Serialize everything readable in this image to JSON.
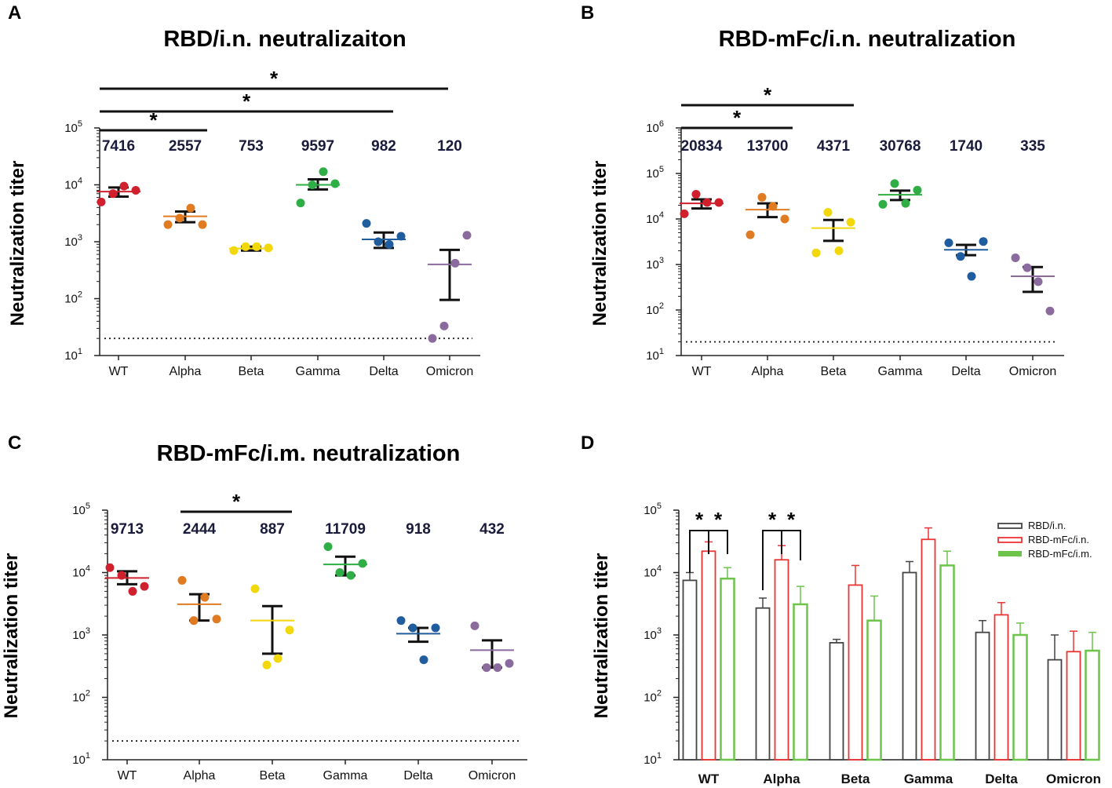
{
  "chart_data": [
    {
      "id": "A",
      "type": "scatter",
      "panel_letter": "A",
      "title": "RBD/i.n. neutralizaiton",
      "ylabel": "Neutralization titer",
      "yscale": "log",
      "ylim_exp": [
        1,
        5
      ],
      "detection_limit": 20,
      "categories": [
        "WT",
        "Alpha",
        "Beta",
        "Gamma",
        "Delta",
        "Omicron"
      ],
      "colors": [
        "#d0202d",
        "#e07b22",
        "#f2d70a",
        "#2fae45",
        "#1f5d9e",
        "#8b6a9e"
      ],
      "gmt_labels": [
        "7416",
        "2557",
        "753",
        "9597",
        "982",
        "120"
      ],
      "points": [
        [
          5000,
          7000,
          9500,
          8000
        ],
        [
          2000,
          2600,
          3900,
          2000
        ],
        [
          700,
          820,
          820,
          780
        ],
        [
          4800,
          10000,
          17000,
          10500
        ],
        [
          2100,
          1000,
          900,
          1250
        ],
        [
          20,
          33,
          420,
          1300
        ]
      ],
      "mean": [
        7600,
        2800,
        760,
        10000,
        1100,
        400
      ],
      "err_low": [
        6200,
        2200,
        700,
        8300,
        780,
        95
      ],
      "err_high": [
        9000,
        3400,
        820,
        12500,
        1450,
        720
      ],
      "significance": [
        {
          "from": 0,
          "to": 1,
          "label": "*"
        },
        {
          "from": 0,
          "to": 4,
          "label": "*"
        },
        {
          "from": 0,
          "to": 5,
          "label": "*"
        }
      ]
    },
    {
      "id": "B",
      "type": "scatter",
      "panel_letter": "B",
      "title": "RBD-mFc/i.n. neutralization",
      "ylabel": "Neutralization titer",
      "yscale": "log",
      "ylim_exp": [
        1,
        6
      ],
      "detection_limit": 20,
      "categories": [
        "WT",
        "Alpha",
        "Beta",
        "Gamma",
        "Delta",
        "Omicron"
      ],
      "colors": [
        "#d0202d",
        "#e07b22",
        "#f2d70a",
        "#2fae45",
        "#1f5d9e",
        "#8b6a9e"
      ],
      "gmt_labels": [
        "20834",
        "13700",
        "4371",
        "30768",
        "1740",
        "335"
      ],
      "points": [
        [
          13000,
          35000,
          23000,
          23000
        ],
        [
          4500,
          30000,
          19000,
          10000
        ],
        [
          1800,
          14000,
          2000,
          8500
        ],
        [
          21000,
          60000,
          22000,
          43000
        ],
        [
          3000,
          1500,
          550,
          3200
        ],
        [
          1400,
          850,
          420,
          95
        ]
      ],
      "mean": [
        22000,
        16000,
        6300,
        34000,
        2100,
        550
      ],
      "err_low": [
        17000,
        11000,
        3300,
        26000,
        1600,
        250
      ],
      "err_high": [
        27000,
        22000,
        9500,
        42000,
        2700,
        880
      ],
      "significance": [
        {
          "from": 0,
          "to": 1,
          "label": "*"
        },
        {
          "from": 0,
          "to": 2,
          "label": "*"
        }
      ]
    },
    {
      "id": "C",
      "type": "scatter",
      "panel_letter": "C",
      "title": "RBD-mFc/i.m. neutralization",
      "ylabel": "Neutralization titer",
      "yscale": "log",
      "ylim_exp": [
        1,
        5
      ],
      "detection_limit": 20,
      "categories": [
        "WT",
        "Alpha",
        "Beta",
        "Gamma",
        "Delta",
        "Omicron"
      ],
      "colors": [
        "#d0202d",
        "#e07b22",
        "#f2d70a",
        "#2fae45",
        "#1f5d9e",
        "#8b6a9e"
      ],
      "gmt_labels": [
        "9713",
        "2444",
        "887",
        "11709",
        "918",
        "432"
      ],
      "points": [
        [
          12000,
          9000,
          5000,
          6000
        ],
        [
          7500,
          1700,
          4000,
          1800
        ],
        [
          5500,
          330,
          420,
          1200
        ],
        [
          26000,
          10000,
          9000,
          14000
        ],
        [
          1700,
          1300,
          400,
          1300
        ],
        [
          1400,
          300,
          300,
          350
        ]
      ],
      "mean": [
        8200,
        3100,
        1700,
        13500,
        1050,
        570
      ],
      "err_low": [
        6500,
        1700,
        500,
        9000,
        780,
        300
      ],
      "err_high": [
        10500,
        4500,
        2900,
        18000,
        1300,
        820
      ],
      "significance": [
        {
          "from": 1,
          "to": 2,
          "label": "*"
        }
      ]
    },
    {
      "id": "D",
      "type": "bar",
      "panel_letter": "D",
      "ylabel": "Neutralization titer",
      "yscale": "log",
      "ylim_exp": [
        1,
        5
      ],
      "categories": [
        "WT",
        "Alpha",
        "Beta",
        "Gamma",
        "Delta",
        "Omicron"
      ],
      "series": [
        {
          "name": "RBD/i.n.",
          "color": "#444444",
          "values": [
            7500,
            2700,
            750,
            10000,
            1100,
            400
          ],
          "err": [
            10000,
            3900,
            850,
            15000,
            1700,
            1000
          ]
        },
        {
          "name": "RBD-mFc/i.n.",
          "color": "#ee3333",
          "values": [
            22000,
            16000,
            6300,
            34000,
            2100,
            540
          ],
          "err": [
            31000,
            27000,
            13000,
            52000,
            3300,
            1150
          ]
        },
        {
          "name": "RBD-mFc/i.m.",
          "color": "#6cc44a",
          "values": [
            8000,
            3100,
            1700,
            13000,
            1000,
            560
          ],
          "err": [
            12000,
            6000,
            4200,
            22000,
            1550,
            1100
          ]
        }
      ],
      "significance": [
        {
          "cat": 0,
          "from": 0,
          "to": 1,
          "label": "*"
        },
        {
          "cat": 0,
          "from": 1,
          "to": 2,
          "label": "*"
        },
        {
          "cat": 1,
          "from": 0,
          "to": 1,
          "label": "*"
        },
        {
          "cat": 1,
          "from": 1,
          "to": 2,
          "label": "*"
        }
      ]
    }
  ]
}
